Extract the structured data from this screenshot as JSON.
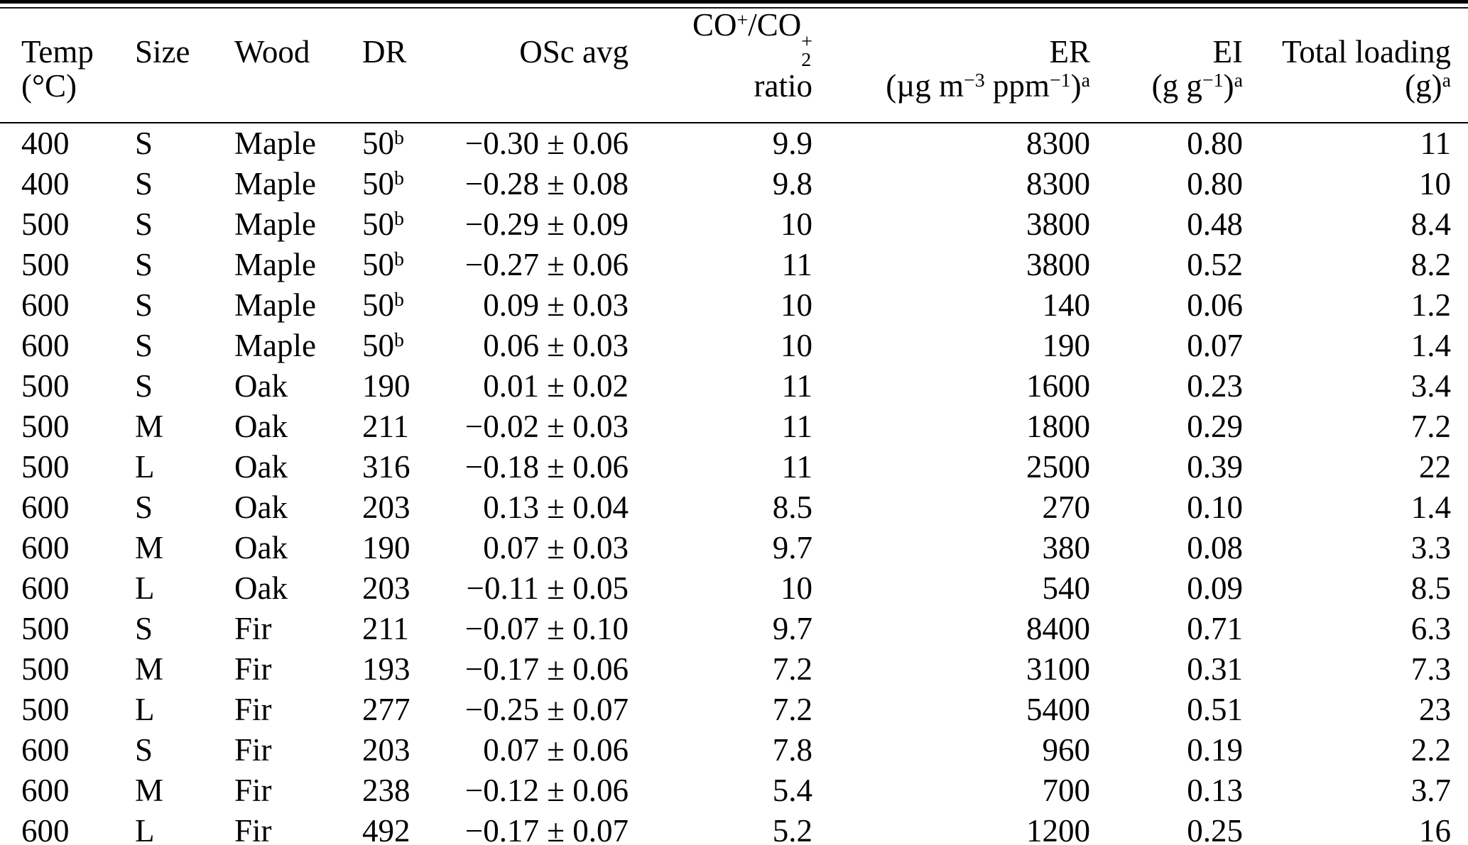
{
  "table": {
    "columns": [
      {
        "id": "temp",
        "align": "left",
        "line1": "Temp",
        "line2": "(°C)"
      },
      {
        "id": "size",
        "align": "left",
        "line1": "Size",
        "line2": ""
      },
      {
        "id": "wood",
        "align": "left",
        "line1": "Wood",
        "line2": ""
      },
      {
        "id": "dr",
        "align": "left",
        "line1": "DR",
        "line2": ""
      },
      {
        "id": "osc_avg",
        "align": "right",
        "line1": "OSc avg",
        "line2": ""
      },
      {
        "id": "co_co2_ratio",
        "align": "right",
        "line1": "CO<sup>+</sup>/CO<span class='stk'><span>+</span><span>2</span></span>",
        "line2": "ratio"
      },
      {
        "id": "er",
        "align": "right",
        "line1": "ER",
        "line2": "(µg m<sup>−3</sup> ppm<sup>−1</sup>)<sup>a</sup>"
      },
      {
        "id": "ei",
        "align": "right",
        "line1": "EI",
        "line2": "(g g<sup>−1</sup>)<sup>a</sup>"
      },
      {
        "id": "total_loading",
        "align": "right",
        "line1": "Total loading",
        "line2": "(g)<sup>a</sup>"
      }
    ],
    "rows": [
      [
        "400",
        "S",
        "Maple",
        "50<sup>b</sup>",
        "−0.30 ± 0.06",
        "9.9",
        "8300",
        "0.80",
        "11"
      ],
      [
        "400",
        "S",
        "Maple",
        "50<sup>b</sup>",
        "−0.28 ± 0.08",
        "9.8",
        "8300",
        "0.80",
        "10"
      ],
      [
        "500",
        "S",
        "Maple",
        "50<sup>b</sup>",
        "−0.29 ± 0.09",
        "10",
        "3800",
        "0.48",
        "8.4"
      ],
      [
        "500",
        "S",
        "Maple",
        "50<sup>b</sup>",
        "−0.27 ± 0.06",
        "11",
        "3800",
        "0.52",
        "8.2"
      ],
      [
        "600",
        "S",
        "Maple",
        "50<sup>b</sup>",
        "0.09 ± 0.03",
        "10",
        "140",
        "0.06",
        "1.2"
      ],
      [
        "600",
        "S",
        "Maple",
        "50<sup>b</sup>",
        "0.06 ± 0.03",
        "10",
        "190",
        "0.07",
        "1.4"
      ],
      [
        "500",
        "S",
        "Oak",
        "190",
        "0.01 ± 0.02",
        "11",
        "1600",
        "0.23",
        "3.4"
      ],
      [
        "500",
        "M",
        "Oak",
        "211",
        "−0.02 ± 0.03",
        "11",
        "1800",
        "0.29",
        "7.2"
      ],
      [
        "500",
        "L",
        "Oak",
        "316",
        "−0.18 ± 0.06",
        "11",
        "2500",
        "0.39",
        "22"
      ],
      [
        "600",
        "S",
        "Oak",
        "203",
        "0.13 ± 0.04",
        "8.5",
        "270",
        "0.10",
        "1.4"
      ],
      [
        "600",
        "M",
        "Oak",
        "190",
        "0.07 ± 0.03",
        "9.7",
        "380",
        "0.08",
        "3.3"
      ],
      [
        "600",
        "L",
        "Oak",
        "203",
        "−0.11 ± 0.05",
        "10",
        "540",
        "0.09",
        "8.5"
      ],
      [
        "500",
        "S",
        "Fir",
        "211",
        "−0.07 ± 0.10",
        "9.7",
        "8400",
        "0.71",
        "6.3"
      ],
      [
        "500",
        "M",
        "Fir",
        "193",
        "−0.17 ± 0.06",
        "7.2",
        "3100",
        "0.31",
        "7.3"
      ],
      [
        "500",
        "L",
        "Fir",
        "277",
        "−0.25 ± 0.07",
        "7.2",
        "5400",
        "0.51",
        "23"
      ],
      [
        "600",
        "S",
        "Fir",
        "203",
        "0.07 ± 0.06",
        "7.8",
        "960",
        "0.19",
        "2.2"
      ],
      [
        "600",
        "M",
        "Fir",
        "238",
        "−0.12 ± 0.06",
        "5.4",
        "700",
        "0.13",
        "3.7"
      ],
      [
        "600",
        "L",
        "Fir",
        "492",
        "−0.17 ± 0.07",
        "5.2",
        "1200",
        "0.25",
        "16"
      ]
    ]
  }
}
